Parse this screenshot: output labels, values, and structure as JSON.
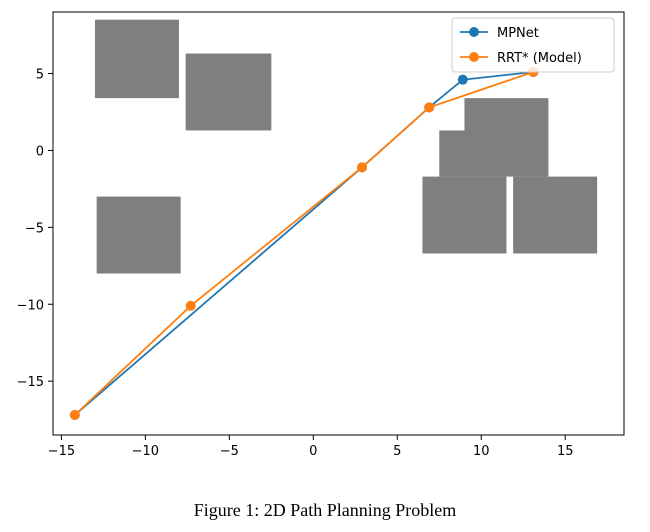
{
  "caption": "Figure 1: 2D Path Planning Problem",
  "chart_data": {
    "type": "line",
    "title": "",
    "xlabel": "",
    "ylabel": "",
    "xlim": [
      -15.5,
      18.5
    ],
    "ylim": [
      -18.5,
      9.0
    ],
    "xticks": [
      -15,
      -10,
      -5,
      0,
      5,
      10,
      15
    ],
    "yticks": [
      5,
      0,
      -5,
      -10,
      -15
    ],
    "tick_labels_x": [
      "−15",
      "−10",
      "−5",
      "0",
      "5",
      "10",
      "15"
    ],
    "tick_labels_y": [
      "5",
      "0",
      "−5",
      "−10",
      "−15"
    ],
    "grid": false,
    "legend_position": "top-right",
    "obstacles": [
      {
        "x0": -13.0,
        "y0": 3.4,
        "x1": -8.0,
        "y1": 8.5
      },
      {
        "x0": -7.6,
        "y0": 1.3,
        "x1": -2.5,
        "y1": 6.3
      },
      {
        "x0": -12.9,
        "y0": -8.0,
        "x1": -7.9,
        "y1": -3.0
      },
      {
        "x0": 7.5,
        "y0": -1.7,
        "x1": 11.5,
        "y1": 1.3
      },
      {
        "x0": 9.0,
        "y0": -1.7,
        "x1": 14.0,
        "y1": 3.4
      },
      {
        "x0": 6.5,
        "y0": -6.7,
        "x1": 11.5,
        "y1": -1.7
      },
      {
        "x0": 11.9,
        "y0": -6.7,
        "x1": 16.9,
        "y1": -1.7
      }
    ],
    "series": [
      {
        "name": "MPNet",
        "color": "#1f77b4",
        "x": [
          -14.2,
          2.9,
          6.9,
          8.9,
          13.1
        ],
        "y": [
          -17.2,
          -1.1,
          2.8,
          4.6,
          5.1
        ]
      },
      {
        "name": "RRT* (Model)",
        "color": "#ff7f0e",
        "x": [
          -14.2,
          -7.3,
          2.9,
          6.9,
          13.1
        ],
        "y": [
          -17.2,
          -10.1,
          -1.1,
          2.8,
          5.1
        ]
      }
    ]
  }
}
